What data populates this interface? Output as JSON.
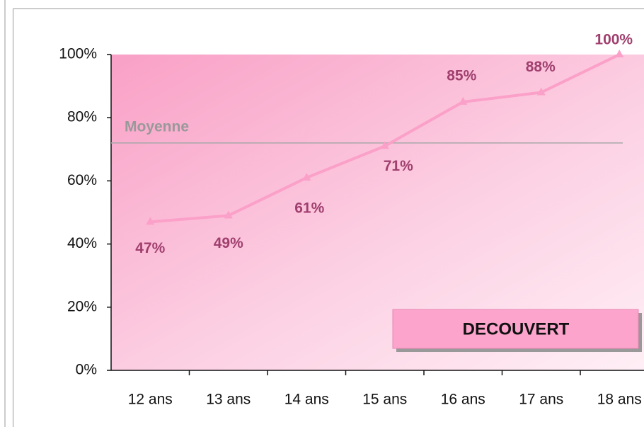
{
  "chart_data": {
    "type": "line",
    "categories": [
      "12 ans",
      "13 ans",
      "14 ans",
      "15 ans",
      "16 ans",
      "17 ans",
      "18 ans"
    ],
    "series": [
      {
        "name": "DECOUVERT",
        "color": "#fba0c8",
        "values": [
          47,
          49,
          61,
          71,
          85,
          88,
          100
        ],
        "value_labels": [
          "47%",
          "49%",
          "61%",
          "71%",
          "85%",
          "88%",
          "100%"
        ]
      }
    ],
    "average": {
      "label": "Moyenne",
      "value": 72
    },
    "ylim": [
      0,
      100
    ],
    "yticks": [
      {
        "value": 0,
        "label": "0%"
      },
      {
        "value": 20,
        "label": "20%"
      },
      {
        "value": 40,
        "label": "40%"
      },
      {
        "value": 60,
        "label": "60%"
      },
      {
        "value": 80,
        "label": "80%"
      },
      {
        "value": 100,
        "label": "100%"
      }
    ]
  }
}
